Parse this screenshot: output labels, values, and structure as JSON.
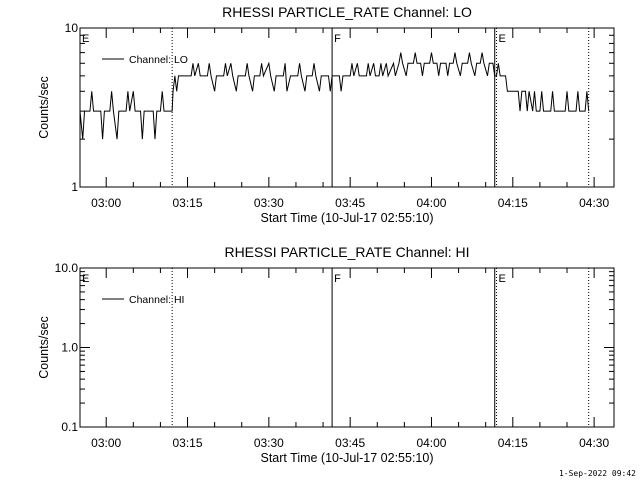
{
  "footer": "1-Sep-2022 09:42",
  "chart_data": [
    {
      "type": "line",
      "title": "RHESSI PARTICLE_RATE Channel: LO",
      "xlabel": "Start Time (10-Jul-17 02:55:10)",
      "ylabel": "Counts/sec",
      "yscale": "log",
      "ylim": [
        1,
        10
      ],
      "xlim": [
        "02:55:10",
        "04:33:40"
      ],
      "y_ticks": [
        {
          "value": 1,
          "label": "1"
        },
        {
          "value": 10,
          "label": "10"
        }
      ],
      "x_ticks": [
        {
          "value": "03:00",
          "label": "03:00"
        },
        {
          "value": "03:15",
          "label": "03:15"
        },
        {
          "value": "03:30",
          "label": "03:30"
        },
        {
          "value": "03:45",
          "label": "03:45"
        },
        {
          "value": "04:00",
          "label": "04:00"
        },
        {
          "value": "04:15",
          "label": "04:15"
        },
        {
          "value": "04:30",
          "label": "04:30"
        }
      ],
      "legend": {
        "position": "top-left",
        "entries": [
          "Channel: LO"
        ]
      },
      "markers": [
        {
          "time": "02:55:10",
          "label": "E",
          "style": "solid"
        },
        {
          "time": "03:12:10",
          "label": "",
          "style": "dotted"
        },
        {
          "time": "03:41:40",
          "label": "F",
          "style": "solid"
        },
        {
          "time": "04:11:40",
          "label": "",
          "style": "solid"
        },
        {
          "time": "04:12:00",
          "label": "E",
          "style": "dotted"
        },
        {
          "time": "04:29:00",
          "label": "",
          "style": "dotted"
        }
      ],
      "series": [
        {
          "name": "Channel: LO",
          "points": [
            [
              "02:55:10",
              3
            ],
            [
              "02:55:40",
              2
            ],
            [
              "02:56:00",
              3
            ],
            [
              "02:57:00",
              3
            ],
            [
              "02:57:20",
              4
            ],
            [
              "02:57:40",
              3
            ],
            [
              "02:59:00",
              3
            ],
            [
              "02:59:20",
              2
            ],
            [
              "02:59:40",
              3
            ],
            [
              "03:00:40",
              3
            ],
            [
              "03:01:00",
              4
            ],
            [
              "03:01:20",
              3
            ],
            [
              "03:02:00",
              2
            ],
            [
              "03:02:20",
              3
            ],
            [
              "03:03:40",
              3
            ],
            [
              "03:04:00",
              4
            ],
            [
              "03:04:20",
              3
            ],
            [
              "03:05:00",
              4
            ],
            [
              "03:05:20",
              3
            ],
            [
              "03:06:20",
              3
            ],
            [
              "03:06:40",
              2
            ],
            [
              "03:07:00",
              3
            ],
            [
              "03:08:40",
              3
            ],
            [
              "03:09:00",
              2
            ],
            [
              "03:09:20",
              3
            ],
            [
              "03:10:00",
              3
            ],
            [
              "03:10:20",
              4
            ],
            [
              "03:10:40",
              3
            ],
            [
              "03:12:10",
              3
            ],
            [
              "03:12:20",
              4
            ],
            [
              "03:12:40",
              5
            ],
            [
              "03:13:00",
              4
            ],
            [
              "03:13:20",
              5
            ],
            [
              "03:15:40",
              5
            ],
            [
              "03:16:00",
              6
            ],
            [
              "03:16:20",
              5
            ],
            [
              "03:17:00",
              6
            ],
            [
              "03:17:20",
              5
            ],
            [
              "03:18:40",
              5
            ],
            [
              "03:19:00",
              6
            ],
            [
              "03:19:20",
              5
            ],
            [
              "03:20:00",
              4
            ],
            [
              "03:20:20",
              5
            ],
            [
              "03:21:40",
              5
            ],
            [
              "03:22:00",
              6
            ],
            [
              "03:22:20",
              5
            ],
            [
              "03:23:00",
              6
            ],
            [
              "03:23:20",
              5
            ],
            [
              "03:24:00",
              4
            ],
            [
              "03:24:20",
              5
            ],
            [
              "03:25:40",
              5
            ],
            [
              "03:26:00",
              6
            ],
            [
              "03:26:20",
              5
            ],
            [
              "03:27:00",
              4
            ],
            [
              "03:27:20",
              5
            ],
            [
              "03:28:20",
              5
            ],
            [
              "03:28:40",
              6
            ],
            [
              "03:29:00",
              5
            ],
            [
              "03:30:00",
              6
            ],
            [
              "03:30:20",
              5
            ],
            [
              "03:31:00",
              4
            ],
            [
              "03:31:20",
              5
            ],
            [
              "03:32:40",
              5
            ],
            [
              "03:33:00",
              6
            ],
            [
              "03:33:20",
              4
            ],
            [
              "03:34:00",
              5
            ],
            [
              "03:35:20",
              5
            ],
            [
              "03:35:40",
              6
            ],
            [
              "03:36:00",
              5
            ],
            [
              "03:36:40",
              4
            ],
            [
              "03:37:00",
              5
            ],
            [
              "03:38:00",
              5
            ],
            [
              "03:38:20",
              6
            ],
            [
              "03:38:40",
              5
            ],
            [
              "03:39:20",
              4
            ],
            [
              "03:39:40",
              5
            ],
            [
              "03:41:00",
              5
            ],
            [
              "03:41:20",
              4
            ],
            [
              "03:41:40",
              5
            ],
            [
              "03:43:00",
              5
            ],
            [
              "03:43:20",
              4
            ],
            [
              "03:43:40",
              5
            ],
            [
              "03:45:00",
              5
            ],
            [
              "03:45:20",
              6
            ],
            [
              "03:45:40",
              5
            ],
            [
              "03:46:20",
              6
            ],
            [
              "03:46:40",
              5
            ],
            [
              "03:48:00",
              5
            ],
            [
              "03:48:20",
              6
            ],
            [
              "03:48:40",
              5
            ],
            [
              "03:49:20",
              6
            ],
            [
              "03:49:40",
              5
            ],
            [
              "03:50:20",
              5
            ],
            [
              "03:50:40",
              6
            ],
            [
              "03:51:00",
              5
            ],
            [
              "03:51:40",
              6
            ],
            [
              "03:52:00",
              5
            ],
            [
              "03:53:00",
              6
            ],
            [
              "03:53:20",
              5
            ],
            [
              "03:54:00",
              6
            ],
            [
              "03:54:20",
              7
            ],
            [
              "03:54:40",
              6
            ],
            [
              "03:55:20",
              5
            ],
            [
              "03:55:40",
              6
            ],
            [
              "03:56:40",
              6
            ],
            [
              "03:57:00",
              7
            ],
            [
              "03:57:20",
              6
            ],
            [
              "03:58:00",
              6
            ],
            [
              "03:58:20",
              5
            ],
            [
              "03:58:40",
              6
            ],
            [
              "03:59:40",
              6
            ],
            [
              "04:00:00",
              7
            ],
            [
              "04:00:20",
              6
            ],
            [
              "04:01:00",
              6
            ],
            [
              "04:01:20",
              5
            ],
            [
              "04:01:40",
              6
            ],
            [
              "04:02:40",
              6
            ],
            [
              "04:03:00",
              5
            ],
            [
              "04:03:20",
              6
            ],
            [
              "04:04:00",
              6
            ],
            [
              "04:04:20",
              7
            ],
            [
              "04:04:40",
              6
            ],
            [
              "04:05:20",
              5
            ],
            [
              "04:05:40",
              6
            ],
            [
              "04:06:40",
              6
            ],
            [
              "04:07:00",
              7
            ],
            [
              "04:07:20",
              6
            ],
            [
              "04:08:00",
              5
            ],
            [
              "04:08:20",
              6
            ],
            [
              "04:09:00",
              6
            ],
            [
              "04:09:20",
              7
            ],
            [
              "04:09:40",
              6
            ],
            [
              "04:10:20",
              5
            ],
            [
              "04:10:40",
              6
            ],
            [
              "04:11:20",
              6
            ],
            [
              "04:11:40",
              5
            ],
            [
              "04:12:00",
              5
            ],
            [
              "04:12:20",
              6
            ],
            [
              "04:12:40",
              5
            ],
            [
              "04:13:40",
              5
            ],
            [
              "04:14:00",
              4
            ],
            [
              "04:16:00",
              4
            ],
            [
              "04:16:20",
              3
            ],
            [
              "04:16:40",
              4
            ],
            [
              "04:17:20",
              4
            ],
            [
              "04:17:40",
              3
            ],
            [
              "04:18:00",
              4
            ],
            [
              "04:18:40",
              3
            ],
            [
              "04:19:00",
              4
            ],
            [
              "04:19:20",
              3
            ],
            [
              "04:20:00",
              3
            ],
            [
              "04:20:20",
              4
            ],
            [
              "04:20:40",
              3
            ],
            [
              "04:22:00",
              3
            ],
            [
              "04:22:20",
              4
            ],
            [
              "04:22:40",
              3
            ],
            [
              "04:24:40",
              3
            ],
            [
              "04:25:00",
              4
            ],
            [
              "04:25:20",
              3
            ],
            [
              "04:26:40",
              3
            ],
            [
              "04:27:00",
              4
            ],
            [
              "04:27:20",
              3
            ],
            [
              "04:28:20",
              3
            ],
            [
              "04:28:40",
              4
            ],
            [
              "04:29:00",
              3
            ]
          ]
        }
      ]
    },
    {
      "type": "line",
      "title": "RHESSI PARTICLE_RATE Channel: HI",
      "xlabel": "Start Time (10-Jul-17 02:55:10)",
      "ylabel": "Counts/sec",
      "yscale": "log",
      "ylim": [
        0.1,
        10
      ],
      "xlim": [
        "02:55:10",
        "04:33:40"
      ],
      "y_ticks": [
        {
          "value": 0.1,
          "label": "0.1"
        },
        {
          "value": 1,
          "label": "1.0"
        },
        {
          "value": 10,
          "label": "10.0"
        }
      ],
      "x_ticks": [
        {
          "value": "03:00",
          "label": "03:00"
        },
        {
          "value": "03:15",
          "label": "03:15"
        },
        {
          "value": "03:30",
          "label": "03:30"
        },
        {
          "value": "03:45",
          "label": "03:45"
        },
        {
          "value": "04:00",
          "label": "04:00"
        },
        {
          "value": "04:15",
          "label": "04:15"
        },
        {
          "value": "04:30",
          "label": "04:30"
        }
      ],
      "legend": {
        "position": "top-left",
        "entries": [
          "Channel: HI"
        ]
      },
      "markers": [
        {
          "time": "02:55:10",
          "label": "E",
          "style": "solid"
        },
        {
          "time": "03:12:10",
          "label": "",
          "style": "dotted"
        },
        {
          "time": "03:41:40",
          "label": "F",
          "style": "solid"
        },
        {
          "time": "04:11:40",
          "label": "",
          "style": "solid"
        },
        {
          "time": "04:12:00",
          "label": "E",
          "style": "dotted"
        },
        {
          "time": "04:29:00",
          "label": "",
          "style": "dotted"
        }
      ],
      "series": [
        {
          "name": "Channel: HI",
          "points": []
        }
      ]
    }
  ]
}
